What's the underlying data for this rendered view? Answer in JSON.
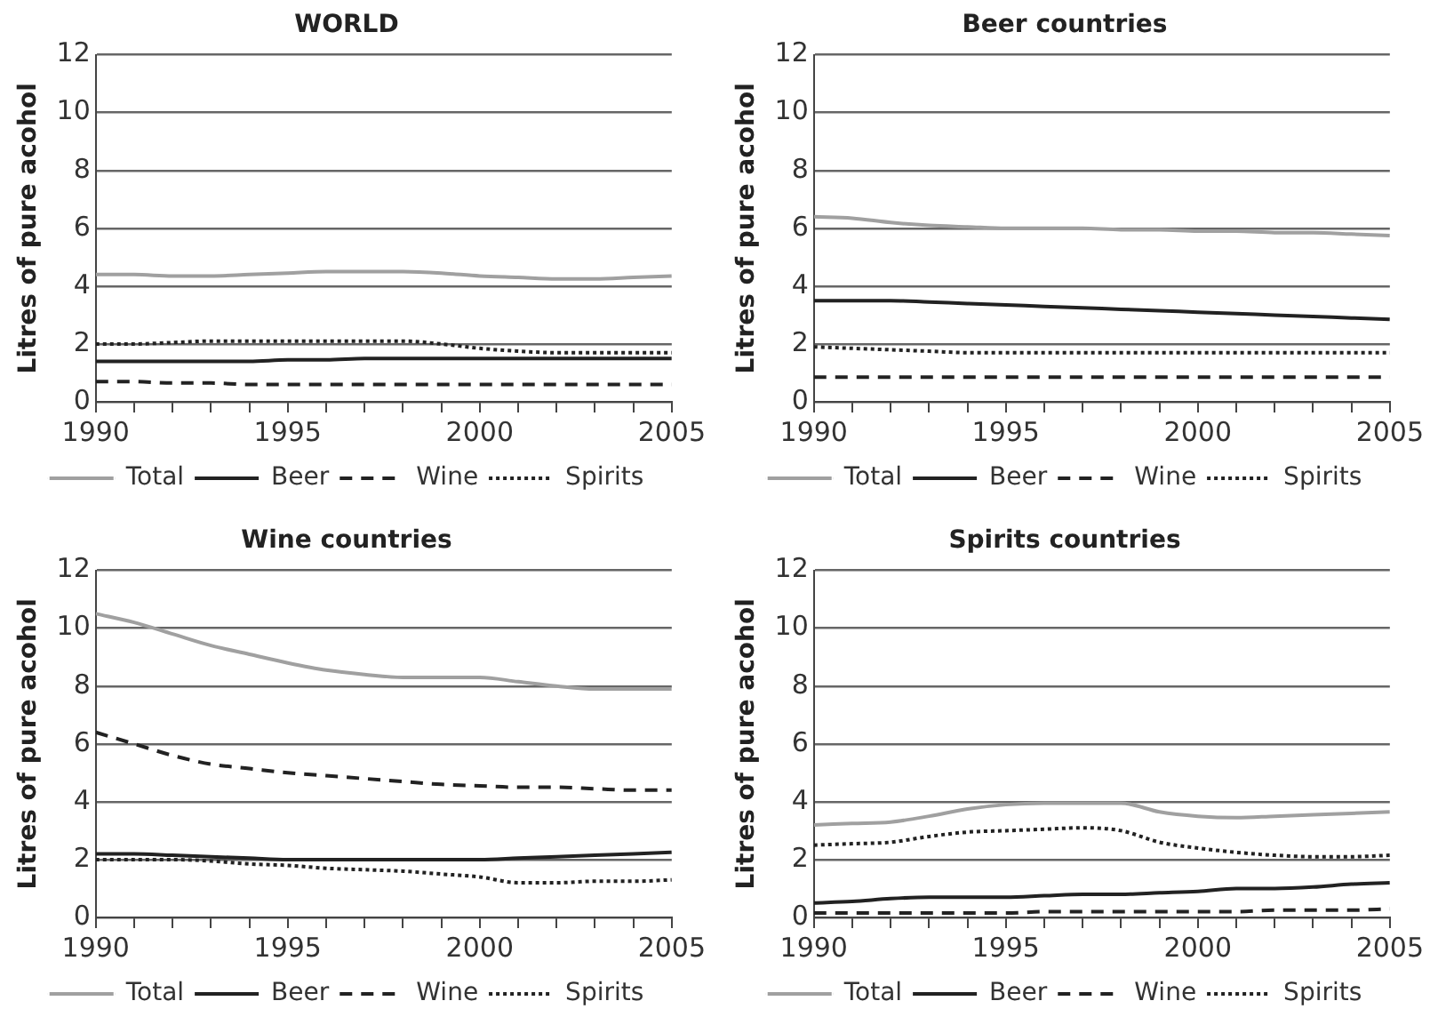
{
  "chart_data": [
    {
      "type": "line",
      "title": "WORLD",
      "ylabel": "Litres of pure acohol",
      "x": [
        1990,
        1991,
        1992,
        1993,
        1994,
        1995,
        1996,
        1997,
        1998,
        1999,
        2000,
        2001,
        2002,
        2003,
        2004,
        2005
      ],
      "xlim": [
        1990,
        2005
      ],
      "xticks": [
        1990,
        {
          "value": 1991,
          "label": null
        },
        {
          "value": 1992,
          "label": null
        },
        {
          "value": 1993,
          "label": null
        },
        {
          "value": 1994,
          "label": null
        },
        1995,
        {
          "value": 1996,
          "label": null
        },
        {
          "value": 1997,
          "label": null
        },
        {
          "value": 1998,
          "label": null
        },
        {
          "value": 1999,
          "label": null
        },
        2000,
        {
          "value": 2001,
          "label": null
        },
        {
          "value": 2002,
          "label": null
        },
        {
          "value": 2003,
          "label": null
        },
        {
          "value": 2004,
          "label": null
        },
        2005
      ],
      "ylim": [
        0,
        12
      ],
      "yticks": [
        0,
        2,
        4,
        6,
        8,
        10,
        12
      ],
      "grid": "y",
      "legend": "bottom",
      "series": [
        {
          "name": "Total",
          "color": "#a0a0a0",
          "line_style": "solid",
          "values": [
            4.4,
            4.4,
            4.35,
            4.35,
            4.4,
            4.45,
            4.5,
            4.5,
            4.5,
            4.45,
            4.35,
            4.3,
            4.25,
            4.25,
            4.3,
            4.35
          ]
        },
        {
          "name": "Beer",
          "color": "#222222",
          "line_style": "solid",
          "values": [
            1.4,
            1.4,
            1.4,
            1.4,
            1.4,
            1.45,
            1.45,
            1.5,
            1.5,
            1.5,
            1.5,
            1.5,
            1.5,
            1.5,
            1.5,
            1.5
          ]
        },
        {
          "name": "Wine",
          "color": "#222222",
          "line_style": "dashed",
          "values": [
            0.7,
            0.7,
            0.65,
            0.65,
            0.6,
            0.6,
            0.6,
            0.6,
            0.6,
            0.6,
            0.6,
            0.6,
            0.6,
            0.6,
            0.6,
            0.6
          ]
        },
        {
          "name": "Spirits",
          "color": "#222222",
          "line_style": "dotted",
          "values": [
            2.0,
            2.0,
            2.05,
            2.1,
            2.1,
            2.1,
            2.1,
            2.1,
            2.1,
            2.0,
            1.85,
            1.75,
            1.7,
            1.7,
            1.7,
            1.7
          ]
        }
      ]
    },
    {
      "type": "line",
      "title": "Beer countries",
      "ylabel": "Litres of pure acohol",
      "x": [
        1990,
        1991,
        1992,
        1993,
        1994,
        1995,
        1996,
        1997,
        1998,
        1999,
        2000,
        2001,
        2002,
        2003,
        2004,
        2005
      ],
      "xlim": [
        1990,
        2005
      ],
      "xticks": [
        1990,
        {
          "value": 1991,
          "label": null
        },
        {
          "value": 1992,
          "label": null
        },
        {
          "value": 1993,
          "label": null
        },
        {
          "value": 1994,
          "label": null
        },
        1995,
        {
          "value": 1996,
          "label": null
        },
        {
          "value": 1997,
          "label": null
        },
        {
          "value": 1998,
          "label": null
        },
        {
          "value": 1999,
          "label": null
        },
        2000,
        {
          "value": 2001,
          "label": null
        },
        {
          "value": 2002,
          "label": null
        },
        {
          "value": 2003,
          "label": null
        },
        {
          "value": 2004,
          "label": null
        },
        2005
      ],
      "ylim": [
        0,
        12
      ],
      "yticks": [
        0,
        2,
        4,
        6,
        8,
        10,
        12
      ],
      "grid": "y",
      "legend": "bottom",
      "series": [
        {
          "name": "Total",
          "color": "#a0a0a0",
          "line_style": "solid",
          "values": [
            6.4,
            6.35,
            6.2,
            6.1,
            6.05,
            6.0,
            6.0,
            6.0,
            5.95,
            5.95,
            5.9,
            5.9,
            5.85,
            5.85,
            5.8,
            5.75
          ]
        },
        {
          "name": "Beer",
          "color": "#222222",
          "line_style": "solid",
          "values": [
            3.5,
            3.5,
            3.5,
            3.45,
            3.4,
            3.35,
            3.3,
            3.25,
            3.2,
            3.15,
            3.1,
            3.05,
            3.0,
            2.95,
            2.9,
            2.85
          ]
        },
        {
          "name": "Wine",
          "color": "#222222",
          "line_style": "dashed",
          "values": [
            0.85,
            0.85,
            0.85,
            0.85,
            0.85,
            0.85,
            0.85,
            0.85,
            0.85,
            0.85,
            0.85,
            0.85,
            0.85,
            0.85,
            0.85,
            0.85
          ]
        },
        {
          "name": "Spirits",
          "color": "#222222",
          "line_style": "dotted",
          "values": [
            1.9,
            1.85,
            1.8,
            1.75,
            1.7,
            1.7,
            1.7,
            1.7,
            1.7,
            1.7,
            1.7,
            1.7,
            1.7,
            1.7,
            1.7,
            1.7
          ]
        }
      ]
    },
    {
      "type": "line",
      "title": "Wine countries",
      "ylabel": "Litres of pure acohol",
      "x": [
        1990,
        1991,
        1992,
        1993,
        1994,
        1995,
        1996,
        1997,
        1998,
        1999,
        2000,
        2001,
        2002,
        2003,
        2004,
        2005
      ],
      "xlim": [
        1990,
        2005
      ],
      "xticks": [
        1990,
        {
          "value": 1991,
          "label": null
        },
        {
          "value": 1992,
          "label": null
        },
        {
          "value": 1993,
          "label": null
        },
        {
          "value": 1994,
          "label": null
        },
        1995,
        {
          "value": 1996,
          "label": null
        },
        {
          "value": 1997,
          "label": null
        },
        {
          "value": 1998,
          "label": null
        },
        {
          "value": 1999,
          "label": null
        },
        2000,
        {
          "value": 2001,
          "label": null
        },
        {
          "value": 2002,
          "label": null
        },
        {
          "value": 2003,
          "label": null
        },
        {
          "value": 2004,
          "label": null
        },
        2005
      ],
      "ylim": [
        0,
        12
      ],
      "yticks": [
        0,
        2,
        4,
        6,
        8,
        10,
        12
      ],
      "grid": "y",
      "legend": "bottom",
      "series": [
        {
          "name": "Total",
          "color": "#a0a0a0",
          "line_style": "solid",
          "values": [
            10.5,
            10.2,
            9.8,
            9.4,
            9.1,
            8.8,
            8.55,
            8.4,
            8.3,
            8.3,
            8.3,
            8.15,
            8.0,
            7.9,
            7.9,
            7.9
          ]
        },
        {
          "name": "Beer",
          "color": "#222222",
          "line_style": "solid",
          "values": [
            2.2,
            2.2,
            2.15,
            2.1,
            2.05,
            2.0,
            2.0,
            2.0,
            2.0,
            2.0,
            2.0,
            2.05,
            2.1,
            2.15,
            2.2,
            2.25
          ]
        },
        {
          "name": "Wine",
          "color": "#222222",
          "line_style": "dashed",
          "values": [
            6.4,
            6.0,
            5.6,
            5.3,
            5.15,
            5.0,
            4.9,
            4.8,
            4.7,
            4.6,
            4.55,
            4.5,
            4.5,
            4.45,
            4.4,
            4.4
          ]
        },
        {
          "name": "Spirits",
          "color": "#222222",
          "line_style": "dotted",
          "values": [
            2.0,
            2.0,
            2.0,
            1.95,
            1.85,
            1.8,
            1.7,
            1.65,
            1.6,
            1.5,
            1.4,
            1.2,
            1.2,
            1.25,
            1.25,
            1.3
          ]
        }
      ]
    },
    {
      "type": "line",
      "title": "Spirits countries",
      "ylabel": "Litres of pure acohol",
      "x": [
        1990,
        1991,
        1992,
        1993,
        1994,
        1995,
        1996,
        1997,
        1998,
        1999,
        2000,
        2001,
        2002,
        2003,
        2004,
        2005
      ],
      "xlim": [
        1990,
        2005
      ],
      "xticks": [
        1990,
        {
          "value": 1991,
          "label": null
        },
        {
          "value": 1992,
          "label": null
        },
        {
          "value": 1993,
          "label": null
        },
        {
          "value": 1994,
          "label": null
        },
        1995,
        {
          "value": 1996,
          "label": null
        },
        {
          "value": 1997,
          "label": null
        },
        {
          "value": 1998,
          "label": null
        },
        {
          "value": 1999,
          "label": null
        },
        2000,
        {
          "value": 2001,
          "label": null
        },
        {
          "value": 2002,
          "label": null
        },
        {
          "value": 2003,
          "label": null
        },
        {
          "value": 2004,
          "label": null
        },
        2005
      ],
      "ylim": [
        0,
        12
      ],
      "yticks": [
        0,
        2,
        4,
        6,
        8,
        10,
        12
      ],
      "grid": "y",
      "legend": "bottom",
      "series": [
        {
          "name": "Total",
          "color": "#a0a0a0",
          "line_style": "solid",
          "values": [
            3.2,
            3.25,
            3.3,
            3.5,
            3.75,
            3.9,
            3.95,
            3.95,
            3.95,
            3.65,
            3.5,
            3.45,
            3.5,
            3.55,
            3.6,
            3.65
          ]
        },
        {
          "name": "Beer",
          "color": "#222222",
          "line_style": "solid",
          "values": [
            0.5,
            0.55,
            0.65,
            0.7,
            0.7,
            0.7,
            0.75,
            0.8,
            0.8,
            0.85,
            0.9,
            1.0,
            1.0,
            1.05,
            1.15,
            1.2
          ]
        },
        {
          "name": "Wine",
          "color": "#222222",
          "line_style": "dashed",
          "values": [
            0.15,
            0.15,
            0.15,
            0.15,
            0.15,
            0.15,
            0.2,
            0.2,
            0.2,
            0.2,
            0.2,
            0.2,
            0.25,
            0.25,
            0.25,
            0.3
          ]
        },
        {
          "name": "Spirits",
          "color": "#222222",
          "line_style": "dotted",
          "values": [
            2.5,
            2.55,
            2.6,
            2.8,
            2.95,
            3.0,
            3.05,
            3.1,
            3.0,
            2.6,
            2.4,
            2.25,
            2.15,
            2.1,
            2.1,
            2.15
          ]
        }
      ]
    }
  ]
}
